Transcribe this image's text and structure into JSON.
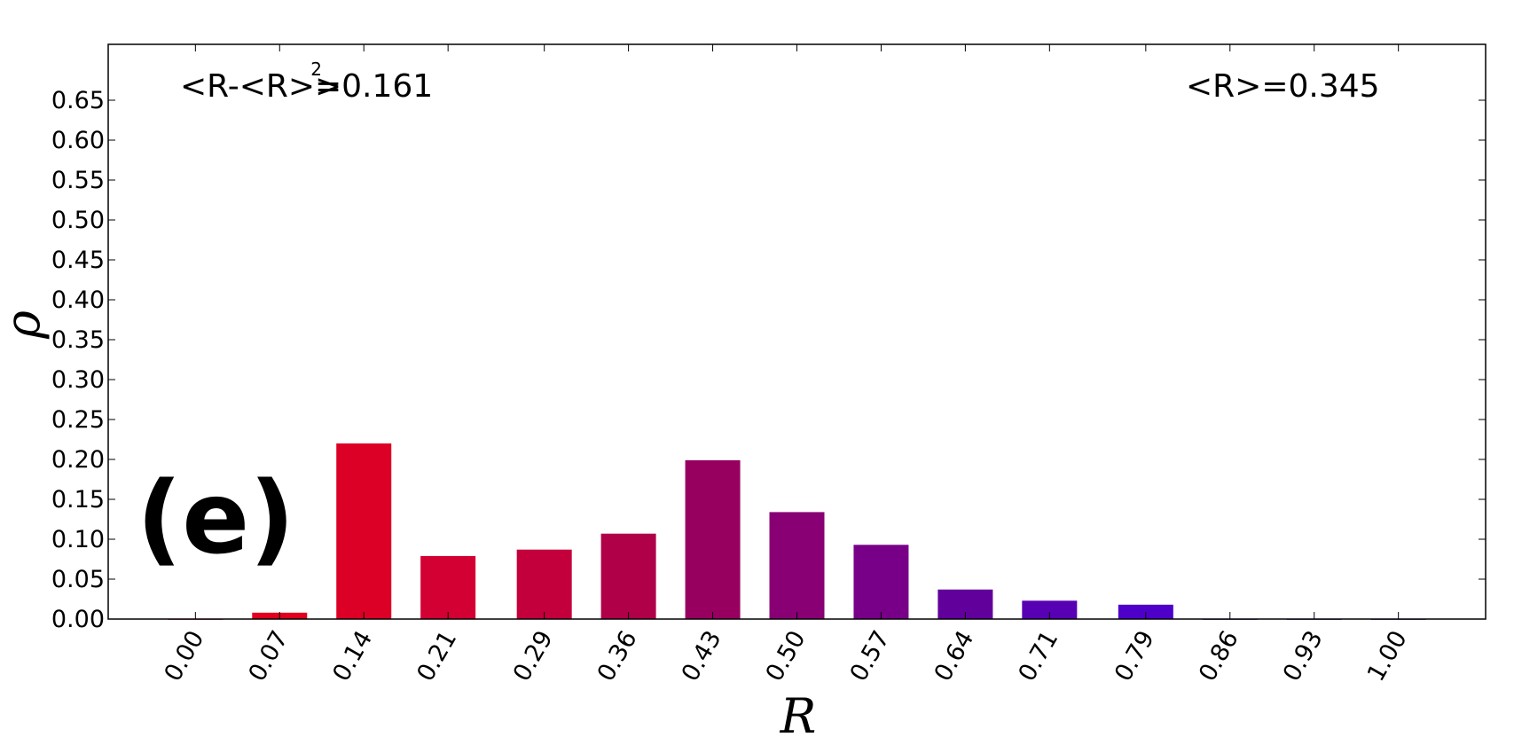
{
  "chart_data": {
    "type": "bar",
    "categories": [
      "0.00",
      "0.07",
      "0.14",
      "0.21",
      "0.29",
      "0.36",
      "0.43",
      "0.50",
      "0.57",
      "0.64",
      "0.71",
      "0.79",
      "0.86",
      "0.93",
      "1.00"
    ],
    "x": [
      0.0,
      0.07,
      0.14,
      0.21,
      0.29,
      0.36,
      0.43,
      0.5,
      0.57,
      0.64,
      0.71,
      0.79,
      0.86,
      0.93,
      1.0
    ],
    "values": [
      0.0,
      0.008,
      0.22,
      0.079,
      0.087,
      0.107,
      0.199,
      0.134,
      0.093,
      0.037,
      0.023,
      0.018,
      0.0,
      0.0,
      0.0
    ],
    "bar_colors": [
      "#e60012",
      "#e0001e",
      "#dc0026",
      "#d20033",
      "#c4003c",
      "#b00048",
      "#980060",
      "#880074",
      "#780088",
      "#62009c",
      "#5800b4",
      "#4e00c8",
      "#4400d6",
      "#3a00e0",
      "#3000ea"
    ],
    "xlabel": "R",
    "ylabel": "ρ",
    "xlim": [
      -0.0725,
      1.0725
    ],
    "ylim": [
      0.0,
      0.72
    ],
    "yticks": [
      "0.00",
      "0.05",
      "0.10",
      "0.15",
      "0.20",
      "0.25",
      "0.30",
      "0.35",
      "0.40",
      "0.45",
      "0.50",
      "0.55",
      "0.60",
      "0.65"
    ],
    "annotations": {
      "variance_text": "<R-<R>>",
      "variance_power": "2",
      "variance_value": "=0.161",
      "mean_text": "<R>=0.345",
      "panel_label": "(e)"
    },
    "grid": false
  }
}
